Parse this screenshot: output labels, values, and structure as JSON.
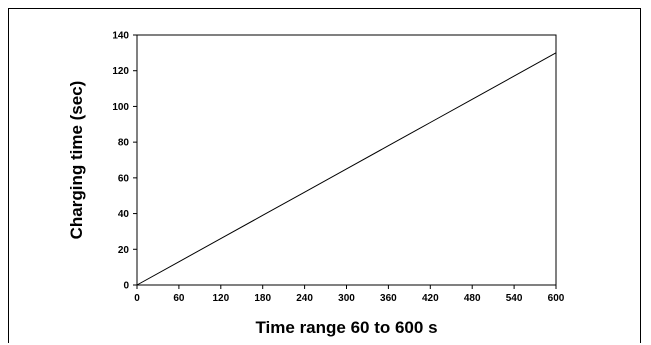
{
  "chart_data": {
    "type": "line",
    "title": "",
    "xlabel": "Time range 60 to 600 s",
    "ylabel": "Charging time (sec)",
    "xlim": [
      0,
      600
    ],
    "ylim": [
      0,
      140
    ],
    "xticks": [
      0,
      60,
      120,
      180,
      240,
      300,
      360,
      420,
      480,
      540,
      600
    ],
    "yticks": [
      0,
      20,
      40,
      60,
      80,
      100,
      120,
      140
    ],
    "grid": false,
    "legend": "none",
    "series": [
      {
        "x": [
          0,
          60,
          120,
          180,
          240,
          300,
          360,
          420,
          480,
          540,
          600
        ],
        "y": [
          0,
          13,
          26,
          39,
          52,
          65,
          78,
          91,
          104,
          117,
          130
        ],
        "color": "#000000"
      }
    ]
  }
}
